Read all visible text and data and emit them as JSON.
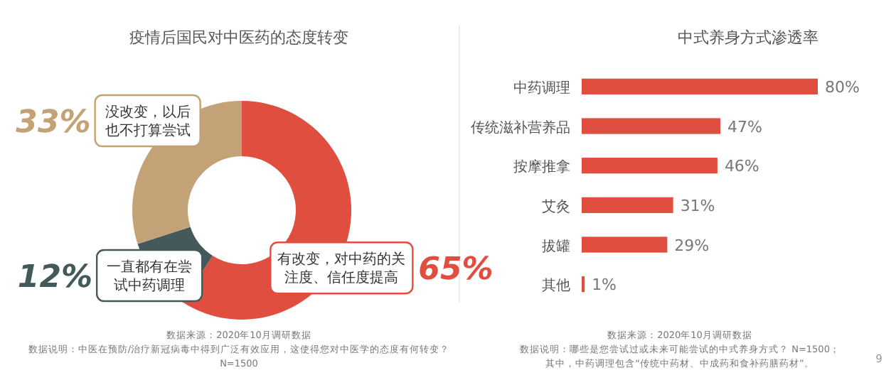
{
  "chart_data": [
    {
      "type": "donut",
      "title": "疫情后国民对中医药的态度转变",
      "categories": [
        "有改变，对中药的关注度、信任度提高",
        "一直都有在尝试中药调理",
        "没改变，以后也不打算尝试"
      ],
      "values": [
        65,
        12,
        33
      ],
      "colors": [
        "#e04e3f",
        "#445a5a",
        "#c2a276"
      ],
      "value_labels": [
        "65%",
        "12%",
        "33%"
      ],
      "annotations": [
        "数据来源：2020年10月调研数据",
        "数据说明：中医在预防/治疗新冠病毒中得到广泛有效应用，这使得您对中医学的态度有何转变？",
        "N=1500"
      ]
    },
    {
      "type": "bar",
      "orientation": "horizontal",
      "title": "中式养身方式渗透率",
      "categories": [
        "中药调理",
        "传统滋补营养品",
        "按摩推拿",
        "艾灸",
        "拔罐",
        "其他"
      ],
      "values": [
        80,
        47,
        46,
        31,
        29,
        1
      ],
      "color": "#e04e3f",
      "value_labels": [
        "80%",
        "47%",
        "46%",
        "31%",
        "29%",
        "1%"
      ],
      "annotations": [
        "数据来源：2020年10月调研数据",
        "数据说明：哪些是您尝试过或未来可能尝试的中式养身方式？ N=1500；",
        "其中，中药调理包含“传统中药材、中成药和食补药膳药材”。",
        "9"
      ]
    }
  ]
}
